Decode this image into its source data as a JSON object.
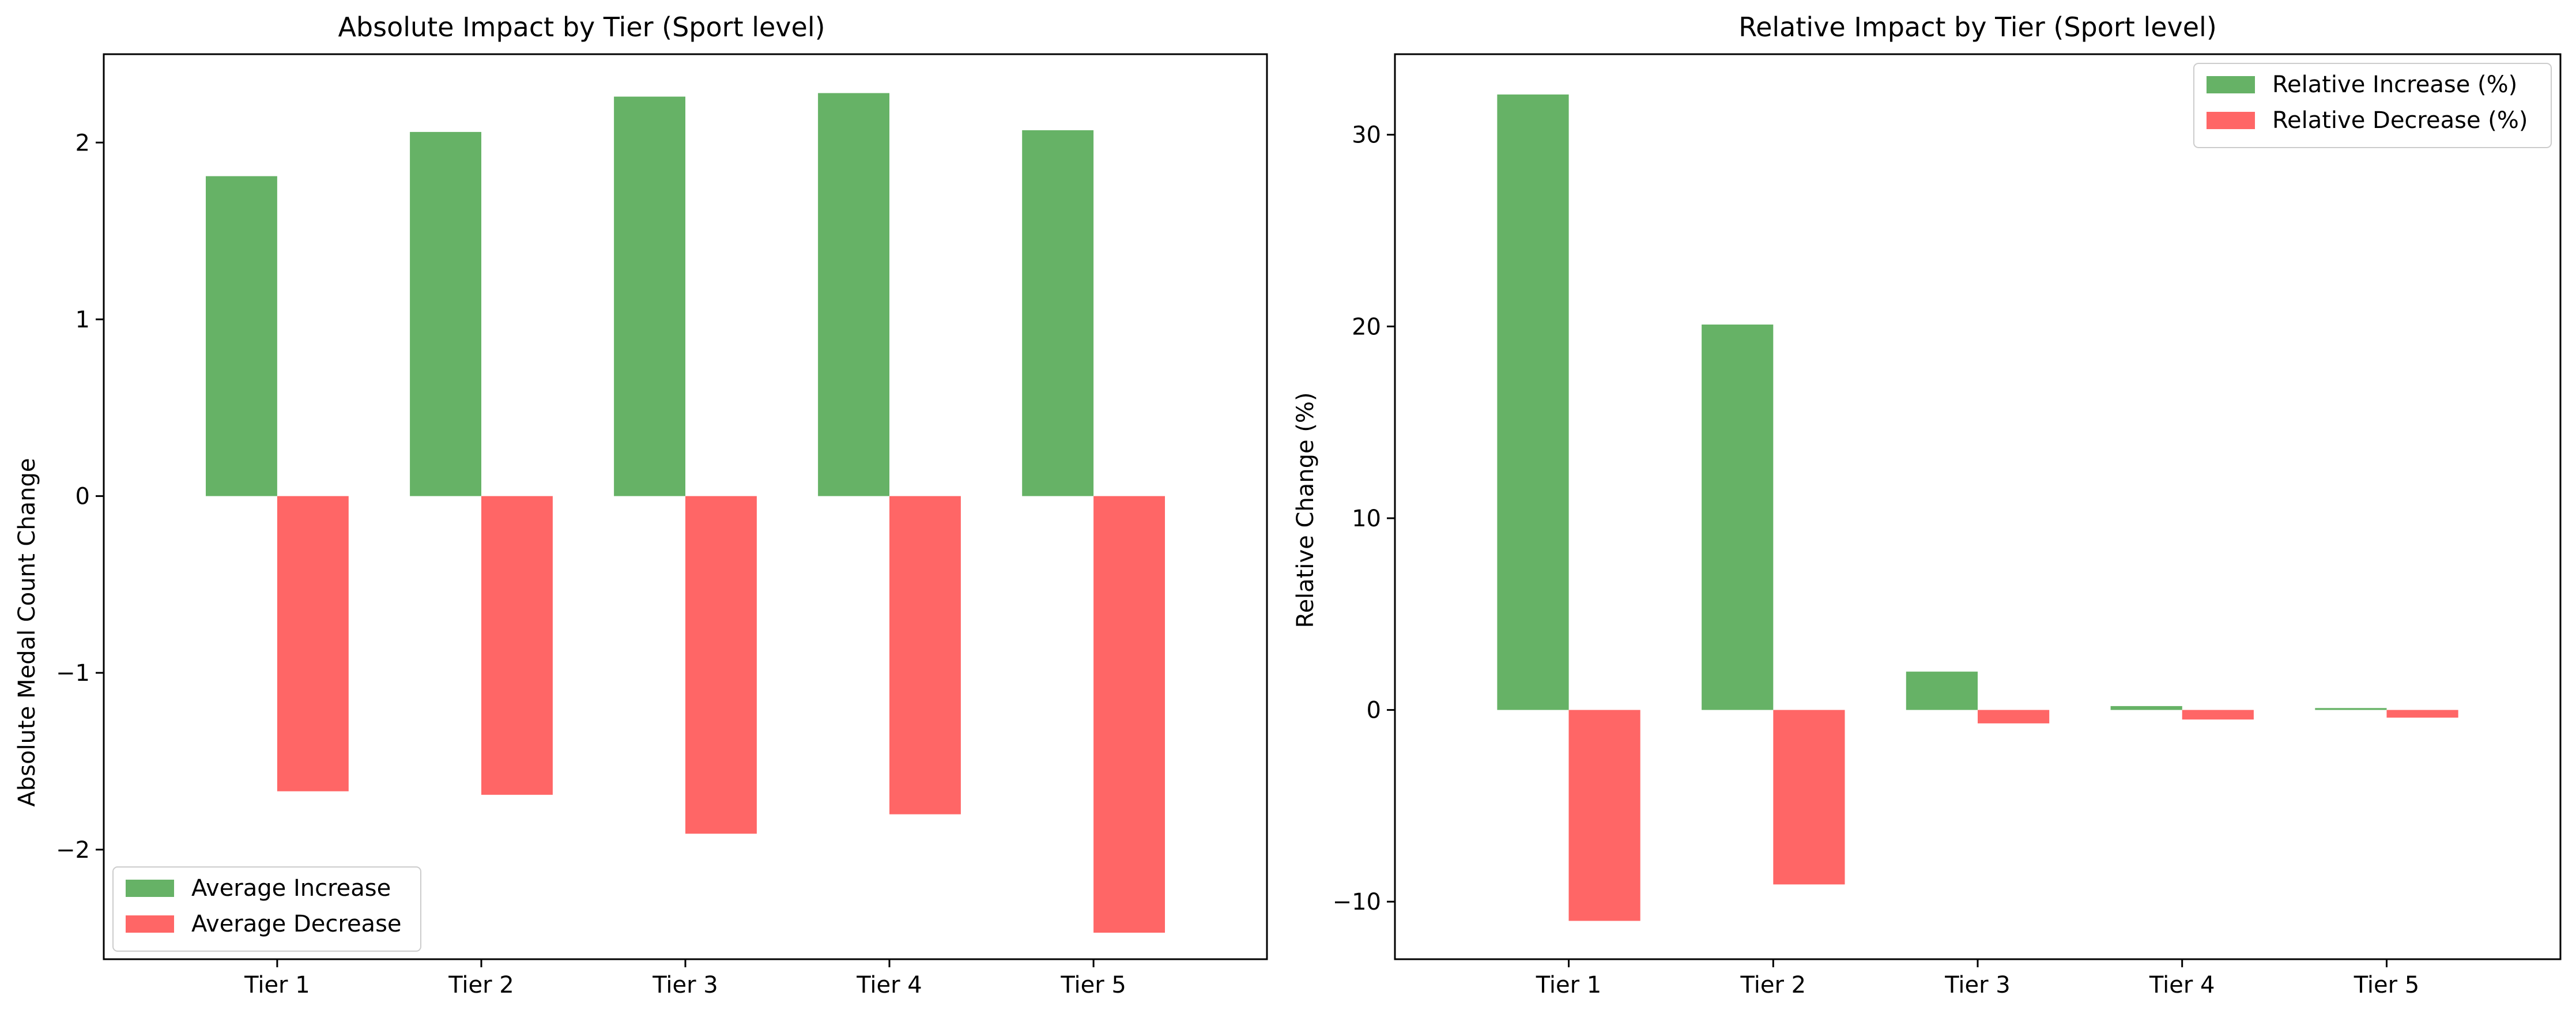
{
  "chart_data": [
    {
      "type": "bar",
      "title": "Absolute Impact by Tier (Sport level)",
      "xlabel": "",
      "ylabel": "Absolute Medal Count Change",
      "categories": [
        "Tier 1",
        "Tier 2",
        "Tier 3",
        "Tier 4",
        "Tier 5"
      ],
      "series": [
        {
          "name": "Average Increase",
          "color": "#66b266",
          "values": [
            1.81,
            2.06,
            2.26,
            2.28,
            2.07
          ]
        },
        {
          "name": "Average Decrease",
          "color": "#ff6666",
          "values": [
            -1.67,
            -1.69,
            -1.91,
            -1.8,
            -2.47
          ]
        }
      ],
      "ylim": [
        -2.62,
        2.5
      ],
      "yticks": [
        -2,
        -1,
        0,
        1,
        2
      ],
      "ytick_labels": [
        "−2",
        "−1",
        "0",
        "1",
        "2"
      ],
      "grid": false,
      "legend_position": "lower-left"
    },
    {
      "type": "bar",
      "title": "Relative Impact by Tier (Sport level)",
      "xlabel": "",
      "ylabel": "Relative Change (%)",
      "categories": [
        "Tier 1",
        "Tier 2",
        "Tier 3",
        "Tier 4",
        "Tier 5"
      ],
      "series": [
        {
          "name": "Relative Increase (%)",
          "color": "#66b266",
          "values": [
            32.1,
            20.1,
            2.0,
            0.2,
            0.1
          ]
        },
        {
          "name": "Relative Decrease (%)",
          "color": "#ff6666",
          "values": [
            -11.0,
            -9.1,
            -0.7,
            -0.5,
            -0.4
          ]
        }
      ],
      "ylim": [
        -13.0,
        34.2
      ],
      "yticks": [
        -10,
        0,
        10,
        20,
        30
      ],
      "ytick_labels": [
        "−10",
        "0",
        "10",
        "20",
        "30"
      ],
      "grid": false,
      "legend_position": "top-right"
    }
  ]
}
